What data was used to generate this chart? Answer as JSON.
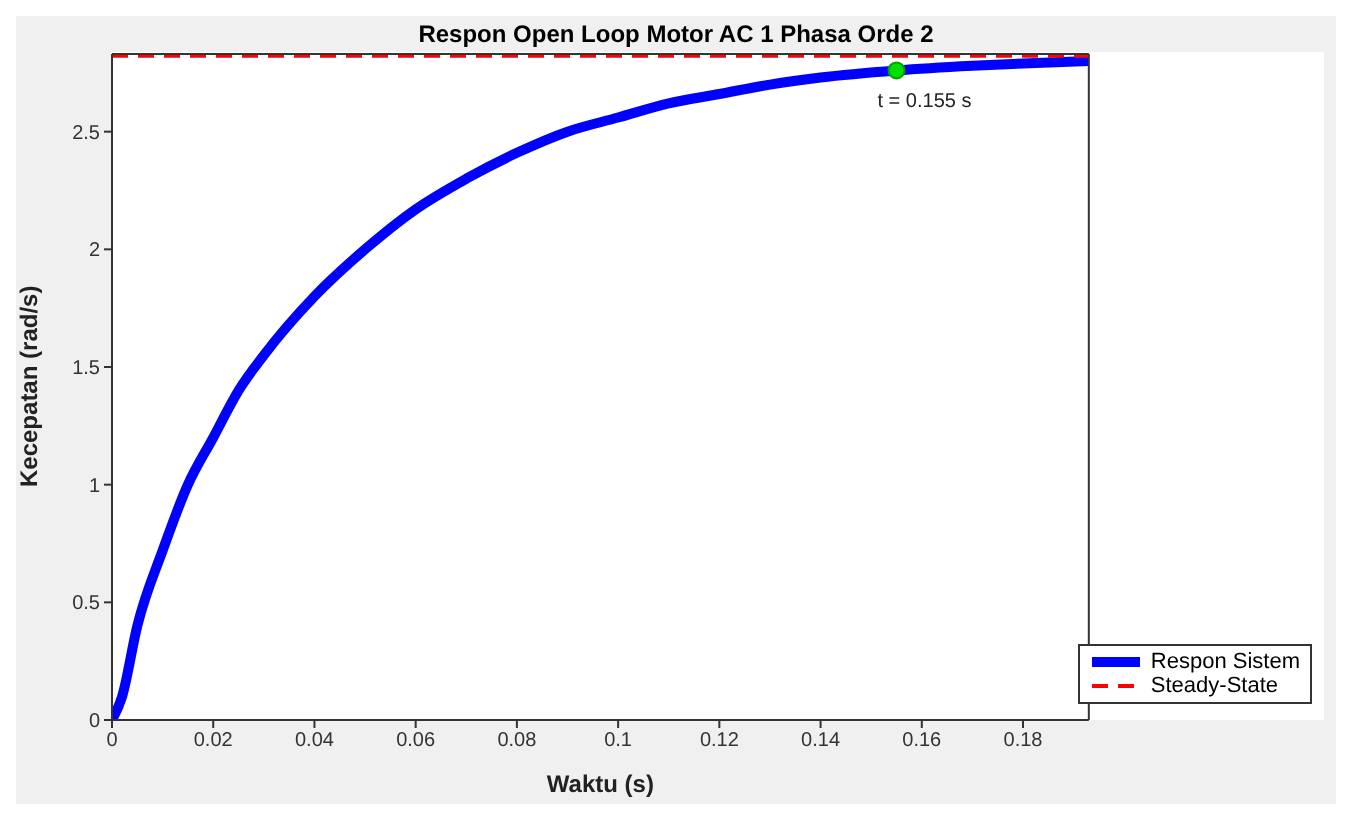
{
  "chart_data": {
    "type": "line",
    "title": "Respon Open Loop Motor AC 1 Phasa Orde 2",
    "xlabel": "Waktu (s)",
    "ylabel": "Kecepatan (rad/s)",
    "xlim": [
      0,
      0.193
    ],
    "xticks": [
      0,
      0.02,
      0.04,
      0.06,
      0.08,
      0.1,
      0.12,
      0.14,
      0.16,
      0.18
    ],
    "ylim": [
      0,
      2.83
    ],
    "yticks": [
      0,
      0.5,
      1,
      1.5,
      2,
      2.5
    ],
    "legend": "bottom right",
    "marker": "none",
    "series": [
      {
        "name": "Respon Sistem",
        "color": "#0000ff",
        "line_style": "solid",
        "x": [
          0,
          0.002,
          0.005,
          0.01,
          0.015,
          0.02,
          0.025,
          0.03,
          0.04,
          0.05,
          0.06,
          0.07,
          0.08,
          0.09,
          0.1,
          0.11,
          0.12,
          0.13,
          0.14,
          0.155,
          0.17,
          0.18,
          0.193
        ],
        "values": [
          0,
          0.1,
          0.4,
          0.72,
          1.0,
          1.2,
          1.4,
          1.55,
          1.8,
          2.0,
          2.17,
          2.3,
          2.41,
          2.5,
          2.56,
          2.62,
          2.66,
          2.7,
          2.73,
          2.76,
          2.78,
          2.79,
          2.8
        ]
      },
      {
        "name": "Steady-State",
        "color": "#ff0000",
        "line_style": "dashed",
        "x": [
          0,
          0.193
        ],
        "values": [
          2.82,
          2.82
        ]
      }
    ],
    "annotations": [
      {
        "text": "t = 0.155 s",
        "x": 0.155,
        "y": 2.76
      }
    ]
  }
}
